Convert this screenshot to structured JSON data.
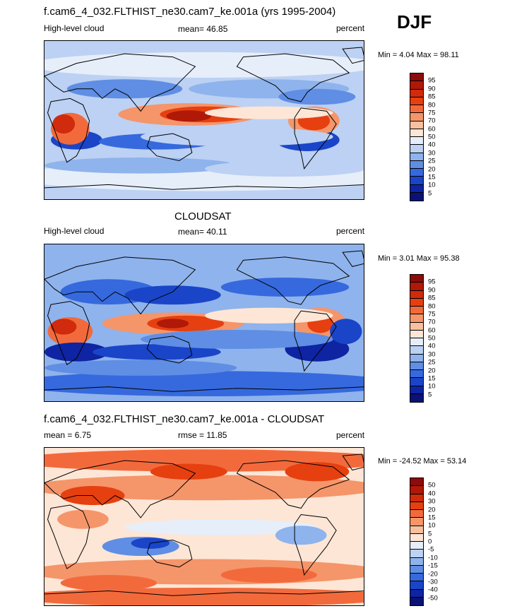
{
  "season": "DJF",
  "panels": [
    {
      "title": "f.cam6_4_032.FLTHIST_ne30.cam7_ke.001a (yrs 1995-2004)",
      "left_label": "High-level cloud",
      "center_label": "mean=  46.85",
      "right_label": "percent",
      "minmax": "Min =   4.04 Max =  98.11",
      "colorbar_ticks": [
        "95",
        "90",
        "85",
        "80",
        "75",
        "70",
        "60",
        "50",
        "40",
        "30",
        "25",
        "20",
        "15",
        "10",
        "5"
      ],
      "colors": [
        "#8c0b0b",
        "#b01808",
        "#cf2b0c",
        "#e64010",
        "#f26a3c",
        "#f5956a",
        "#f9c0a0",
        "#fde6d6",
        "#e6eefa",
        "#bcd1f3",
        "#8fb3ec",
        "#5f8ee4",
        "#3669dd",
        "#1a45c9",
        "#0e24a3",
        "#0a1275"
      ],
      "legend_colors": [
        "#8c0b0b",
        "#b01808",
        "#cf2b0c",
        "#e64010",
        "#f26a3c",
        "#f5956a",
        "#f9c0a0",
        "#fde6d6",
        "#e6eefa",
        "#bcd1f3",
        "#8fb3ec",
        "#5f8ee4",
        "#3669dd",
        "#1a45c9",
        "#0e24a3",
        "#0a1275"
      ]
    },
    {
      "title": "CLOUDSAT",
      "left_label": "High-level cloud",
      "center_label": "mean=  40.11",
      "right_label": "percent",
      "minmax": "Min =   3.01 Max =  95.38",
      "colorbar_ticks": [
        "95",
        "90",
        "85",
        "80",
        "75",
        "70",
        "60",
        "50",
        "40",
        "30",
        "25",
        "20",
        "15",
        "10",
        "5"
      ],
      "colors": [
        "#8c0b0b",
        "#b01808",
        "#cf2b0c",
        "#e64010",
        "#f26a3c",
        "#f5956a",
        "#f9c0a0",
        "#fde6d6",
        "#e6eefa",
        "#bcd1f3",
        "#8fb3ec",
        "#5f8ee4",
        "#3669dd",
        "#1a45c9",
        "#0e24a3",
        "#0a1275"
      ],
      "legend_colors": [
        "#8c0b0b",
        "#b01808",
        "#cf2b0c",
        "#e64010",
        "#f26a3c",
        "#f5956a",
        "#f9c0a0",
        "#fde6d6",
        "#e6eefa",
        "#bcd1f3",
        "#8fb3ec",
        "#5f8ee4",
        "#3669dd",
        "#1a45c9",
        "#0e24a3",
        "#0a1275"
      ]
    },
    {
      "title": "f.cam6_4_032.FLTHIST_ne30.cam7_ke.001a - CLOUDSAT",
      "left_label": "mean =   6.75",
      "center_label": "rmse =  11.85",
      "right_label": "percent",
      "minmax": "Min = -24.52 Max =  53.14",
      "colorbar_ticks": [
        "50",
        "40",
        "30",
        "20",
        "15",
        "10",
        "5",
        "0",
        "-5",
        "-10",
        "-15",
        "-20",
        "-30",
        "-40",
        "-50"
      ],
      "colors": [
        "#8c0b0b",
        "#b01808",
        "#cf2b0c",
        "#e64010",
        "#f26a3c",
        "#f5956a",
        "#f9c0a0",
        "#fde6d6",
        "#e6eefa",
        "#bcd1f3",
        "#8fb3ec",
        "#5f8ee4",
        "#3669dd",
        "#1a45c9",
        "#0e24a3",
        "#0a1275"
      ],
      "legend_colors": [
        "#8c0b0b",
        "#b01808",
        "#cf2b0c",
        "#e64010",
        "#f26a3c",
        "#f5956a",
        "#f9c0a0",
        "#fde6d6",
        "#e6eefa",
        "#bcd1f3",
        "#8fb3ec",
        "#5f8ee4",
        "#3669dd",
        "#1a45c9",
        "#0e24a3",
        "#0a1275"
      ]
    }
  ]
}
